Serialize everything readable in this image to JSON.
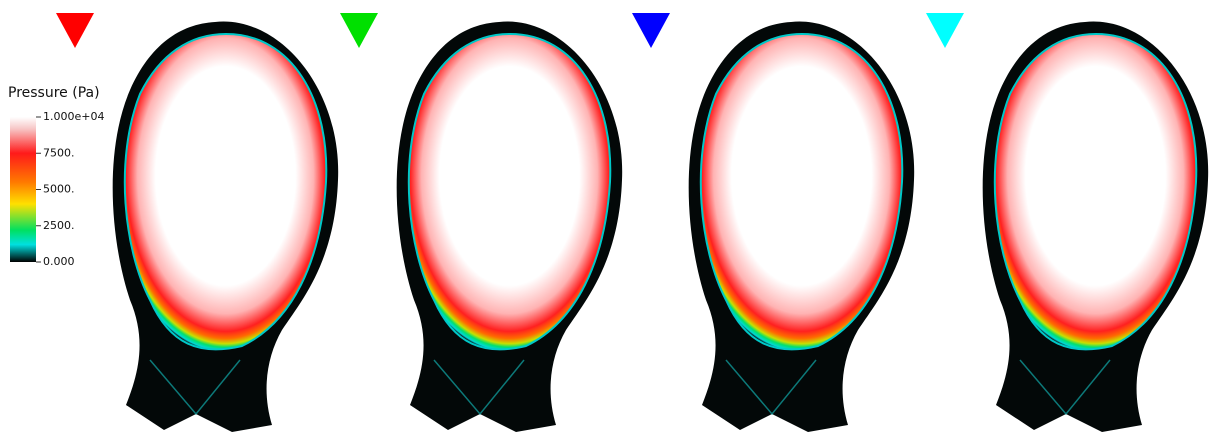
{
  "colorbar": {
    "title": "Pressure (Pa)",
    "ticks": [
      {
        "value": 10000,
        "label": "1.000e+04"
      },
      {
        "value": 7500,
        "label": "7500."
      },
      {
        "value": 5000,
        "label": "5000."
      },
      {
        "value": 2500,
        "label": "2500."
      },
      {
        "value": 0,
        "label": "0.000"
      }
    ]
  }
}
